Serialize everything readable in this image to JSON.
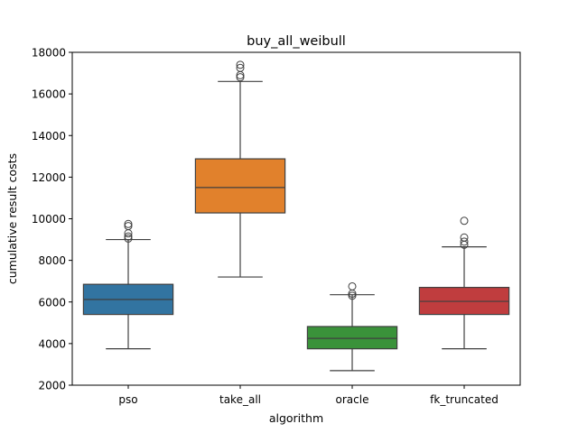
{
  "chart_data": {
    "type": "box",
    "title": "buy_all_weibull",
    "xlabel": "algorithm",
    "ylabel": "cumulative result costs",
    "ylim": [
      2000,
      18000
    ],
    "yticks": [
      2000,
      4000,
      6000,
      8000,
      10000,
      12000,
      14000,
      16000,
      18000
    ],
    "ytick_labels": [
      "2000",
      "4000",
      "6000",
      "8000",
      "10000",
      "12000",
      "14000",
      "16000",
      "18000"
    ],
    "grid": false,
    "categories": [
      "pso",
      "take_all",
      "oracle",
      "fk_truncated"
    ],
    "boxes": [
      {
        "category": "pso",
        "color": "#3274a1",
        "whisker_low": 3750,
        "q1": 5400,
        "median": 6120,
        "q3": 6850,
        "whisker_high": 9000,
        "outliers": [
          9050,
          9150,
          9300,
          9650,
          9750
        ]
      },
      {
        "category": "take_all",
        "color": "#e1812c",
        "whisker_low": 7200,
        "q1": 10280,
        "median": 11500,
        "q3": 12880,
        "whisker_high": 16600,
        "outliers": [
          16800,
          16900,
          17250,
          17400
        ]
      },
      {
        "category": "oracle",
        "color": "#3a923a",
        "whisker_low": 2700,
        "q1": 3750,
        "median": 4250,
        "q3": 4820,
        "whisker_high": 6350,
        "outliers": [
          6300,
          6400,
          6750
        ]
      },
      {
        "category": "fk_truncated",
        "color": "#c03d3e",
        "whisker_low": 3750,
        "q1": 5400,
        "median": 6030,
        "q3": 6700,
        "whisker_high": 8650,
        "outliers": [
          8750,
          8900,
          9100,
          9900
        ]
      }
    ]
  }
}
